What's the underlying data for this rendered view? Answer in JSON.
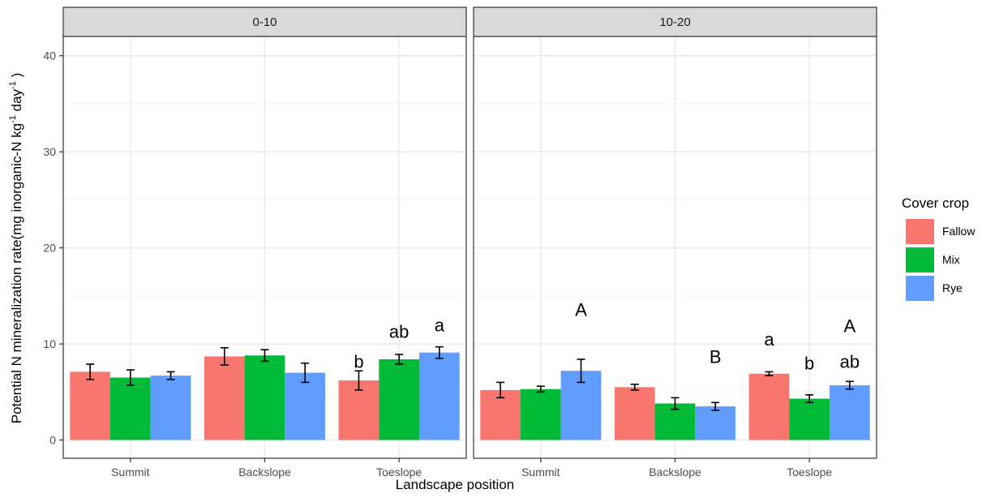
{
  "chart_data": {
    "type": "bar",
    "facets": [
      "0-10",
      "10-20"
    ],
    "categories": [
      "Summit",
      "Backslope",
      "Toeslope"
    ],
    "series": [
      {
        "name": "Fallow",
        "color": "#F8766D"
      },
      {
        "name": "Mix",
        "color": "#00BA38"
      },
      {
        "name": "Rye",
        "color": "#619CFF"
      }
    ],
    "values": {
      "0-10": {
        "Fallow": [
          7.1,
          8.7,
          6.2
        ],
        "Mix": [
          6.5,
          8.8,
          8.4
        ],
        "Rye": [
          6.7,
          7.0,
          9.1
        ]
      },
      "10-20": {
        "Fallow": [
          5.2,
          5.5,
          6.9
        ],
        "Mix": [
          5.3,
          3.8,
          4.3
        ],
        "Rye": [
          7.2,
          3.5,
          5.7
        ]
      }
    },
    "errors": {
      "0-10": {
        "Fallow": [
          0.8,
          0.9,
          1.0
        ],
        "Mix": [
          0.8,
          0.6,
          0.5
        ],
        "Rye": [
          0.4,
          1.0,
          0.6
        ]
      },
      "10-20": {
        "Fallow": [
          0.8,
          0.3,
          0.2
        ],
        "Mix": [
          0.3,
          0.6,
          0.4
        ],
        "Rye": [
          1.2,
          0.4,
          0.4
        ]
      }
    },
    "annotations": [
      {
        "facet": "0-10",
        "category": "Toeslope",
        "series": "Fallow",
        "text": "b",
        "y": 8.2
      },
      {
        "facet": "0-10",
        "category": "Toeslope",
        "series": "Mix",
        "text": "ab",
        "y": 11.3
      },
      {
        "facet": "0-10",
        "category": "Toeslope",
        "series": "Rye",
        "text": "a",
        "y": 12.0
      },
      {
        "facet": "10-20",
        "category": "Summit",
        "series": "Rye",
        "text": "A",
        "y": 13.6
      },
      {
        "facet": "10-20",
        "category": "Backslope",
        "series": "Rye",
        "text": "B",
        "y": 8.7
      },
      {
        "facet": "10-20",
        "category": "Toeslope",
        "series": "Fallow",
        "text": "a",
        "y": 10.5
      },
      {
        "facet": "10-20",
        "category": "Toeslope",
        "series": "Mix",
        "text": "b",
        "y": 8.0
      },
      {
        "facet": "10-20",
        "category": "Toeslope",
        "series": "Rye",
        "text": "A",
        "y": 11.9
      },
      {
        "facet": "10-20",
        "category": "Toeslope",
        "series": "Rye",
        "text": "ab",
        "y": 8.2
      }
    ],
    "ylim": [
      -1.9,
      42
    ],
    "yticks": [
      0,
      10,
      20,
      30,
      40
    ],
    "xlabel": "Landscape position",
    "ylabel": "Potential N mineralization rate(mg inorganic-N kg",
    "ylabel_sup1": "-1",
    "ylabel_mid": " day",
    "ylabel_sup2": "-1",
    "ylabel_end": " )",
    "legend_title": "Cover crop",
    "legend_position": "right",
    "grid": true
  }
}
